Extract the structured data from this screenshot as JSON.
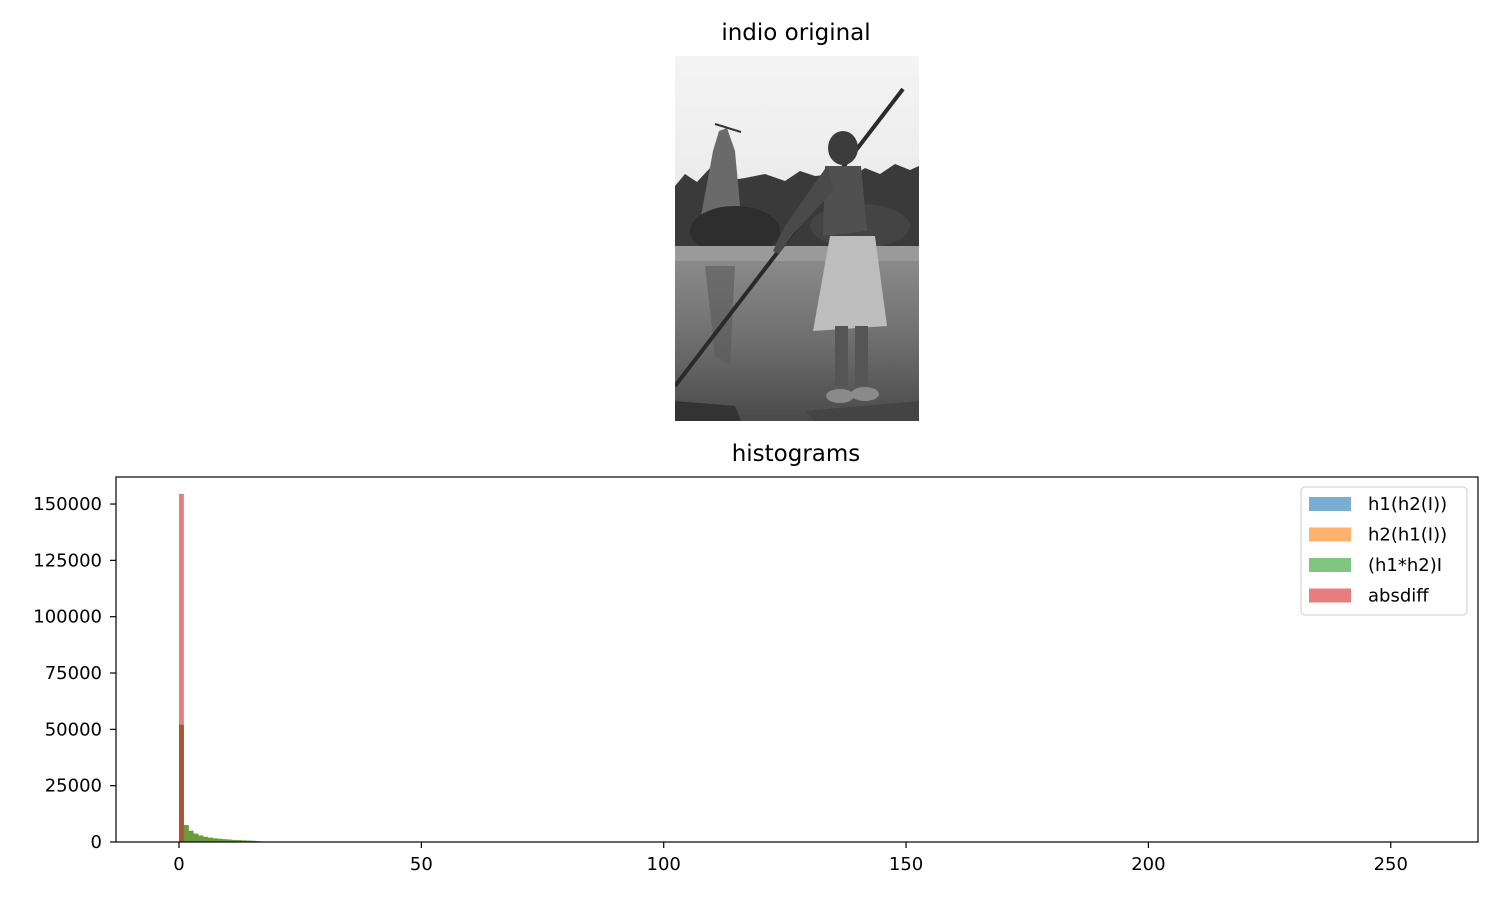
{
  "figure": {
    "image_title": "indio original",
    "image_description_icon": "grayscale-photo"
  },
  "chart_data": {
    "type": "bar",
    "title": "histograms",
    "xlabel": "",
    "ylabel": "",
    "xlim": [
      -13,
      268
    ],
    "ylim": [
      0,
      162000
    ],
    "xticks": [
      0,
      50,
      100,
      150,
      200,
      250
    ],
    "yticks": [
      0,
      25000,
      50000,
      75000,
      100000,
      125000,
      150000
    ],
    "grid": false,
    "legend_position": "top-right",
    "bin_width": 1,
    "series": [
      {
        "name": "h1(h2(I))",
        "color": "#1f77b4",
        "x": [
          0,
          1,
          2,
          3,
          4,
          5,
          6,
          7,
          8,
          9,
          10,
          11,
          12,
          13,
          14,
          15,
          16,
          17,
          18,
          19,
          20
        ],
        "values": [
          52000,
          7500,
          5000,
          3700,
          2900,
          2300,
          1900,
          1600,
          1400,
          1200,
          1050,
          900,
          800,
          700,
          600,
          500,
          300,
          200,
          150,
          100,
          80
        ]
      },
      {
        "name": "h2(h1(I))",
        "color": "#ff7f0e",
        "x": [
          0,
          1,
          2,
          3,
          4,
          5,
          6,
          7,
          8,
          9,
          10,
          11,
          12,
          13,
          14,
          15,
          16,
          17,
          18,
          19,
          20
        ],
        "values": [
          52000,
          7500,
          5000,
          3700,
          2900,
          2300,
          1900,
          1600,
          1400,
          1200,
          1050,
          900,
          800,
          700,
          600,
          500,
          300,
          200,
          150,
          100,
          80
        ]
      },
      {
        "name": "(h1*h2)I",
        "color": "#2ca02c",
        "x": [
          0,
          1,
          2,
          3,
          4,
          5,
          6,
          7,
          8,
          9,
          10,
          11,
          12,
          13,
          14,
          15,
          16,
          17,
          18,
          19,
          20
        ],
        "values": [
          52000,
          7500,
          5000,
          3700,
          2900,
          2300,
          1900,
          1600,
          1400,
          1200,
          1050,
          900,
          800,
          700,
          600,
          500,
          300,
          200,
          150,
          100,
          80
        ]
      },
      {
        "name": "absdiff",
        "color": "#d62728",
        "x": [
          0,
          1
        ],
        "values": [
          154500,
          0
        ]
      }
    ]
  }
}
